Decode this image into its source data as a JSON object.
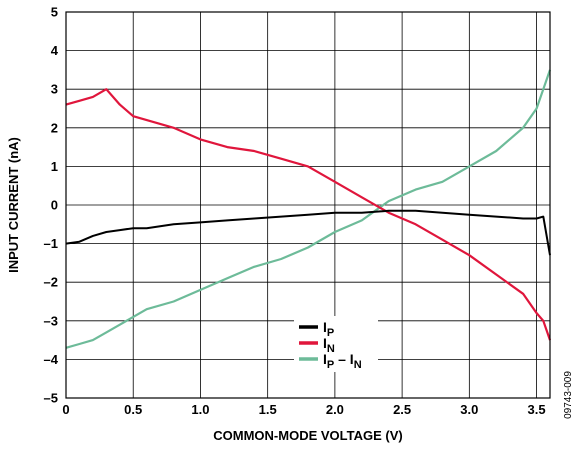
{
  "chart_data": {
    "type": "line",
    "xlabel": "COMMON-MODE VOLTAGE (V)",
    "ylabel": "INPUT CURRENT (nA)",
    "xlim": [
      0,
      3.6
    ],
    "ylim": [
      -5,
      5
    ],
    "x_ticks": [
      0,
      0.5,
      1.0,
      1.5,
      2.0,
      2.5,
      3.0,
      3.5
    ],
    "x_tick_labels": [
      "0",
      "0.5",
      "1.0",
      "1.5",
      "2.0",
      "2.5",
      "3.0",
      "3.5"
    ],
    "y_ticks": [
      -5,
      -4,
      -3,
      -2,
      -1,
      0,
      1,
      2,
      3,
      4,
      5
    ],
    "y_tick_labels": [
      "–5",
      "–4",
      "–3",
      "–2",
      "–1",
      "0",
      "1",
      "2",
      "3",
      "4",
      "5"
    ],
    "grid": true,
    "legend_position": "bottom-center",
    "series": [
      {
        "name": "I_P",
        "legend_main": "I",
        "legend_sub": "P",
        "color": "#000000",
        "x": [
          0,
          0.1,
          0.2,
          0.3,
          0.4,
          0.5,
          0.6,
          0.8,
          1.0,
          1.2,
          1.4,
          1.6,
          1.8,
          2.0,
          2.2,
          2.4,
          2.6,
          2.8,
          3.0,
          3.2,
          3.4,
          3.5,
          3.55,
          3.6
        ],
        "y": [
          -1.0,
          -0.95,
          -0.8,
          -0.7,
          -0.65,
          -0.6,
          -0.6,
          -0.5,
          -0.45,
          -0.4,
          -0.35,
          -0.3,
          -0.25,
          -0.2,
          -0.2,
          -0.15,
          -0.15,
          -0.2,
          -0.25,
          -0.3,
          -0.35,
          -0.35,
          -0.3,
          -1.3
        ]
      },
      {
        "name": "I_N",
        "legend_main": "I",
        "legend_sub": "N",
        "color": "#e0163c",
        "x": [
          0,
          0.1,
          0.2,
          0.3,
          0.4,
          0.5,
          0.6,
          0.8,
          1.0,
          1.2,
          1.4,
          1.6,
          1.8,
          2.0,
          2.2,
          2.4,
          2.6,
          2.8,
          3.0,
          3.2,
          3.4,
          3.5,
          3.55,
          3.6
        ],
        "y": [
          2.6,
          2.7,
          2.8,
          3.0,
          2.6,
          2.3,
          2.2,
          2.0,
          1.7,
          1.5,
          1.4,
          1.2,
          1.0,
          0.6,
          0.2,
          -0.2,
          -0.5,
          -0.9,
          -1.3,
          -1.8,
          -2.3,
          -2.8,
          -3.0,
          -3.5
        ]
      },
      {
        "name": "I_P – I_N",
        "legend_main": "I",
        "legend_sub": "P",
        "legend_main2": " – I",
        "legend_sub2": "N",
        "color": "#6dbb99",
        "x": [
          0,
          0.1,
          0.2,
          0.3,
          0.4,
          0.5,
          0.6,
          0.8,
          1.0,
          1.2,
          1.4,
          1.6,
          1.8,
          2.0,
          2.2,
          2.4,
          2.6,
          2.8,
          3.0,
          3.2,
          3.4,
          3.5,
          3.55,
          3.6
        ],
        "y": [
          -3.7,
          -3.6,
          -3.5,
          -3.3,
          -3.1,
          -2.9,
          -2.7,
          -2.5,
          -2.2,
          -1.9,
          -1.6,
          -1.4,
          -1.1,
          -0.7,
          -0.4,
          0.1,
          0.4,
          0.6,
          1.0,
          1.4,
          2.0,
          2.5,
          3.0,
          3.5
        ]
      }
    ]
  },
  "figure_id": "09743-009"
}
